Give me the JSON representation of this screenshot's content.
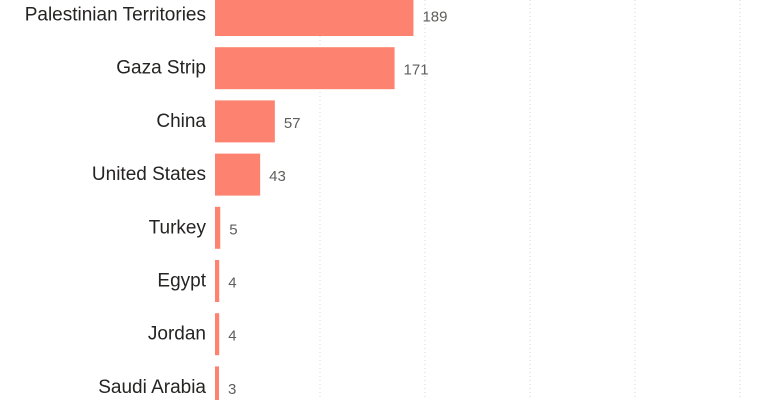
{
  "chart_data": {
    "type": "bar",
    "orientation": "horizontal",
    "categories": [
      "Palestinian Territories",
      "Gaza Strip",
      "China",
      "United States",
      "Turkey",
      "Egypt",
      "Jordan",
      "Saudi Arabia"
    ],
    "values": [
      189,
      171,
      57,
      43,
      5,
      4,
      4,
      3
    ],
    "bar_color": "#fd8370",
    "grid": true,
    "xlim": [
      0,
      500
    ],
    "x_gridlines": [
      100,
      200,
      300,
      400,
      500
    ]
  }
}
